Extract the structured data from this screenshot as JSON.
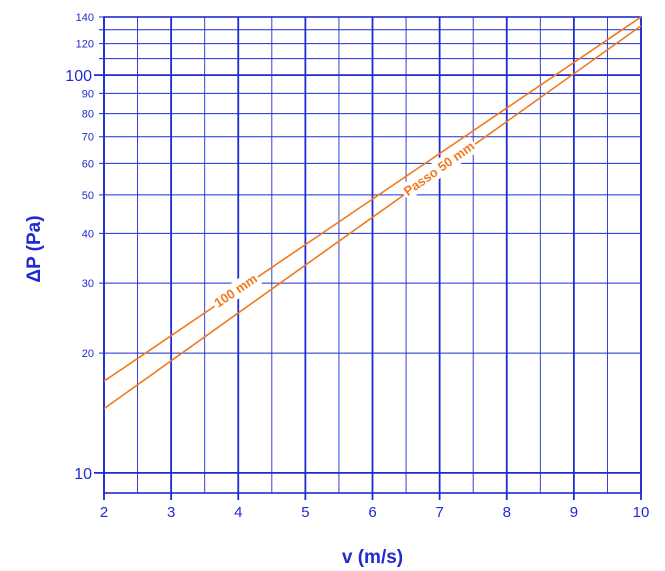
{
  "chart_data": {
    "type": "line",
    "xlabel": "v (m/s)",
    "ylabel": "ΔP (Pa)",
    "xlim": [
      2,
      10
    ],
    "ylim": [
      8.9,
      140
    ],
    "yscale": "log",
    "grid": true,
    "x_ticks": [
      2,
      3,
      4,
      5,
      6,
      7,
      8,
      9,
      10
    ],
    "x_minor_grid": [
      2.5,
      3.5,
      4.5,
      5.5,
      6.5,
      7.5,
      8.5,
      9.5
    ],
    "y_ticks_small": [
      20,
      30,
      40,
      50,
      60,
      70,
      80,
      90,
      120,
      140
    ],
    "y_ticks_big": [
      10,
      100
    ],
    "y_extra_grid": [
      110,
      130
    ],
    "series": [
      {
        "name": "100 mm",
        "x": [
          2,
          10
        ],
        "y": [
          17,
          140
        ]
      },
      {
        "name": "Passo 50 mm",
        "x": [
          2,
          10
        ],
        "y": [
          14.5,
          133
        ]
      }
    ],
    "annotations": [
      {
        "text": "100 mm",
        "series": 0,
        "at_x": 3.97
      },
      {
        "text": "Passo 50 mm",
        "series": 1,
        "at_x": 7.0
      }
    ],
    "colors": {
      "grid": "#1f2bd1",
      "text": "#1f2bd1",
      "series": "#f07a1c"
    }
  }
}
